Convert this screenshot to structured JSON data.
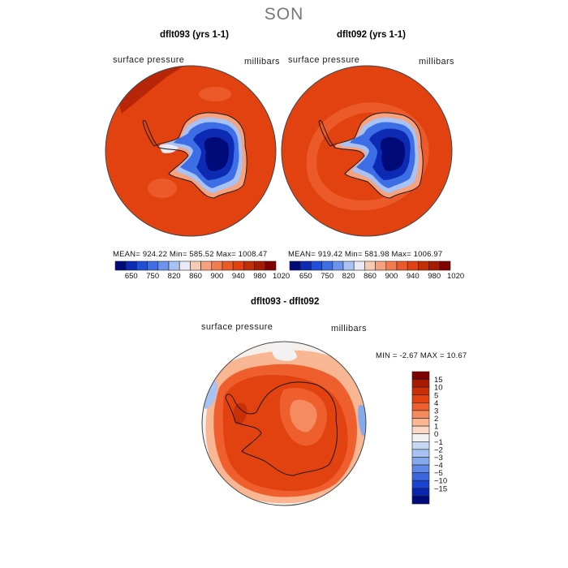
{
  "figure": {
    "season": "SON",
    "colors": {
      "antarctica_low": "#000a78",
      "surface_ocean": "#e1420f",
      "outline": "#1a1a1a"
    }
  },
  "chart_data": [
    {
      "type": "heatmap",
      "projection": "south-polar-stereographic",
      "title": "dflt093 (yrs 1-1)",
      "variable": "surface pressure",
      "units": "millibars",
      "stats": {
        "mean": 924.22,
        "min": 585.52,
        "max": 1008.47
      },
      "stats_text": "MEAN= 924.22   Min= 585.52   Max= 1008.47",
      "colorbar": {
        "colors": [
          "#000a78",
          "#0c2ab4",
          "#1f4fd8",
          "#3d6ee6",
          "#6b93ec",
          "#a7c2f3",
          "#e9eaf6",
          "#f7cbb3",
          "#f7a17d",
          "#f37c4f",
          "#ec5a2a",
          "#e1420f",
          "#c22c06",
          "#a51a03",
          "#800000"
        ],
        "tick_labels": [
          "650",
          "750",
          "820",
          "860",
          "900",
          "940",
          "980",
          "1020"
        ]
      }
    },
    {
      "type": "heatmap",
      "projection": "south-polar-stereographic",
      "title": "dflt092 (yrs 1-1)",
      "variable": "surface pressure",
      "units": "millibars",
      "stats": {
        "mean": 919.42,
        "min": 581.98,
        "max": 1006.97
      },
      "stats_text": "MEAN= 919.42   Min= 581.98   Max= 1006.97",
      "colorbar": {
        "colors": [
          "#000a78",
          "#0c2ab4",
          "#1f4fd8",
          "#3d6ee6",
          "#6b93ec",
          "#a7c2f3",
          "#e9eaf6",
          "#f7cbb3",
          "#f7a17d",
          "#f37c4f",
          "#ec5a2a",
          "#e1420f",
          "#c22c06",
          "#a51a03",
          "#800000"
        ],
        "tick_labels": [
          "650",
          "750",
          "820",
          "860",
          "900",
          "940",
          "980",
          "1020"
        ]
      }
    },
    {
      "type": "heatmap",
      "projection": "south-polar-stereographic",
      "title": "dflt093 - dflt092",
      "variable": "surface pressure",
      "units": "millibars",
      "stats": {
        "min": -2.67,
        "max": 10.67
      },
      "stats_text": "MIN =   -2.67 MAX =   10.67",
      "colorbar": {
        "orientation": "vertical",
        "colors": [
          "#800000",
          "#a81a04",
          "#c9300a",
          "#e1420f",
          "#ef5f2e",
          "#f58b5e",
          "#f9b693",
          "#fbd8c5",
          "#f2f2f2",
          "#c7d8f3",
          "#a8c3f1",
          "#86a9ec",
          "#5f88e6",
          "#3a66e0",
          "#1c44d4",
          "#0a24b0",
          "#000a78"
        ],
        "tick_labels": [
          "15",
          "10",
          "5",
          "4",
          "3",
          "2",
          "1",
          "0",
          "−1",
          "−2",
          "−3",
          "−4",
          "−5",
          "−10",
          "−15"
        ]
      }
    }
  ]
}
